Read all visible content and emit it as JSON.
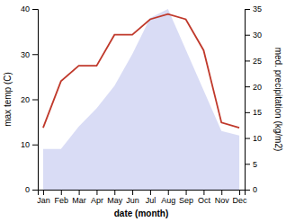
{
  "chart_data": {
    "type": "combo",
    "categories": [
      "Jan",
      "Feb",
      "Mar",
      "Apr",
      "May",
      "Jun",
      "Jul",
      "Aug",
      "Sep",
      "Oct",
      "Nov",
      "Dec"
    ],
    "xlabel": "date (month)",
    "ylabel": "max temp (C)",
    "y2label": "med. precipitation (kg/m2)",
    "ylim": [
      0,
      40
    ],
    "yticks": [
      0,
      10,
      20,
      30,
      40
    ],
    "y2lim": [
      0,
      35
    ],
    "y2ticks": [
      0,
      5,
      10,
      15,
      20,
      25,
      30,
      35
    ],
    "grid": false,
    "series": [
      {
        "type": "area",
        "color": "#c5caf0",
        "values": [
          9,
          9,
          14,
          18,
          23,
          30,
          38,
          40,
          31,
          22,
          13,
          12
        ]
      },
      {
        "type": "line",
        "color": "#c0392b",
        "axis": "y2",
        "values": [
          12,
          21,
          24,
          24,
          30,
          30,
          33,
          34,
          33,
          27,
          13,
          12
        ]
      }
    ]
  }
}
